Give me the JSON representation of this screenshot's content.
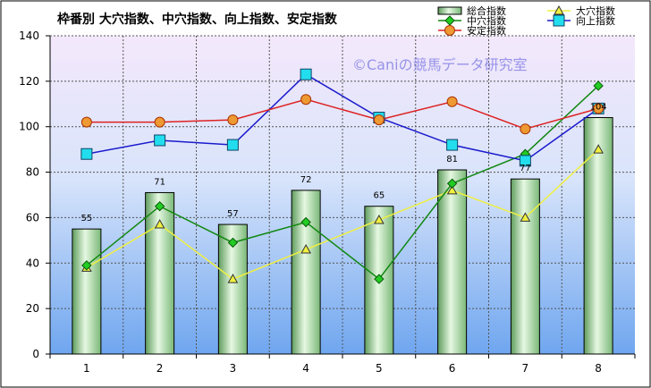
{
  "chart_data": {
    "type": "bar",
    "title": "枠番別  大穴指数、中穴指数、向上指数、安定指数",
    "xlabel": "",
    "ylabel": "",
    "categories": [
      "1",
      "2",
      "3",
      "4",
      "5",
      "6",
      "7",
      "8"
    ],
    "ylim": [
      0,
      140
    ],
    "yticks": [
      0,
      20,
      40,
      60,
      80,
      100,
      120,
      140
    ],
    "grid": true,
    "legend_position": "top-right",
    "watermark": "©Caniの競馬データ研究室",
    "bar_series": {
      "name": "総合指数",
      "values": [
        55,
        71,
        57,
        72,
        65,
        81,
        77,
        104
      ],
      "labels": [
        "55",
        "71",
        "57",
        "72",
        "65",
        "81",
        "77",
        "104"
      ],
      "color": "#9fd49a"
    },
    "line_series": [
      {
        "name": "大穴指数",
        "values": [
          38,
          57,
          33,
          46,
          59,
          72,
          60,
          90
        ],
        "color": "#f0f040",
        "marker": "triangle"
      },
      {
        "name": "中穴指数",
        "values": [
          39,
          65,
          49,
          58,
          33,
          75,
          88,
          118
        ],
        "color": "#118811",
        "marker": "diamond"
      },
      {
        "name": "向上指数",
        "values": [
          88,
          94,
          92,
          123,
          104,
          92,
          85,
          108
        ],
        "color": "#1a1acc",
        "marker": "square"
      },
      {
        "name": "安定指数",
        "values": [
          102,
          102,
          103,
          112,
          103,
          111,
          99,
          108
        ],
        "color": "#dd2222",
        "marker": "circle"
      }
    ]
  }
}
